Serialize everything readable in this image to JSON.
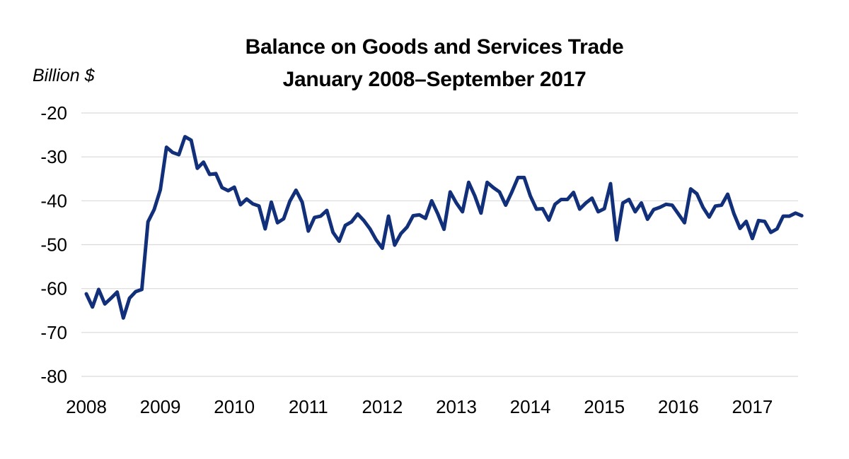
{
  "chart_data": {
    "type": "line",
    "title": "Balance on Goods and Services Trade",
    "subtitle": "January 2008–September 2017",
    "ylabel": "Billion $",
    "xlabel": "",
    "ylim": [
      -80,
      -20
    ],
    "yticks": [
      -20,
      -30,
      -40,
      -50,
      -60,
      -70,
      -80
    ],
    "xticks": [
      "2008",
      "2009",
      "2010",
      "2011",
      "2012",
      "2013",
      "2014",
      "2015",
      "2016",
      "2017"
    ],
    "grid": true,
    "legend": "none",
    "line_color": "#12307a",
    "x_start": "2008-01",
    "frequency": "monthly",
    "series": [
      {
        "values": [
          -61.2,
          -64.2,
          -60.2,
          -63.5,
          -62.2,
          -60.8,
          -66.7,
          -62.2,
          -60.7,
          -60.2,
          -44.8,
          -42.0,
          -37.5,
          -27.8,
          -29.0,
          -29.5,
          -25.4,
          -26.2,
          -32.6,
          -31.2,
          -34.0,
          -33.8,
          -37.0,
          -37.7,
          -36.9,
          -40.9,
          -39.6,
          -40.7,
          -41.2,
          -46.4,
          -40.3,
          -45.0,
          -44.1,
          -40.1,
          -37.6,
          -40.3,
          -46.9,
          -43.8,
          -43.5,
          -42.2,
          -47.2,
          -49.2,
          -45.6,
          -44.8,
          -43.0,
          -44.5,
          -46.4,
          -48.9,
          -50.8,
          -43.5,
          -50.1,
          -47.5,
          -46.0,
          -43.4,
          -43.2,
          -44.0,
          -40.0,
          -43.0,
          -46.5,
          -38.0,
          -40.5,
          -42.5,
          -35.8,
          -38.9,
          -42.8,
          -35.8,
          -37.0,
          -38.0,
          -41.0,
          -38.0,
          -34.7,
          -34.7,
          -38.9,
          -41.9,
          -41.8,
          -44.4,
          -40.8,
          -39.7,
          -39.7,
          -38.1,
          -41.9,
          -40.5,
          -39.4,
          -42.5,
          -41.8,
          -36.1,
          -48.9,
          -40.5,
          -39.7,
          -42.5,
          -40.5,
          -44.2,
          -42.0,
          -41.5,
          -40.8,
          -41.0,
          -43.0,
          -45.0,
          -37.3,
          -38.4,
          -41.5,
          -43.7,
          -41.2,
          -41.0,
          -38.5,
          -42.9,
          -46.3,
          -44.7,
          -48.6,
          -44.5,
          -44.7,
          -47.2,
          -46.4,
          -43.5,
          -43.5,
          -42.8,
          -43.4
        ]
      }
    ]
  }
}
